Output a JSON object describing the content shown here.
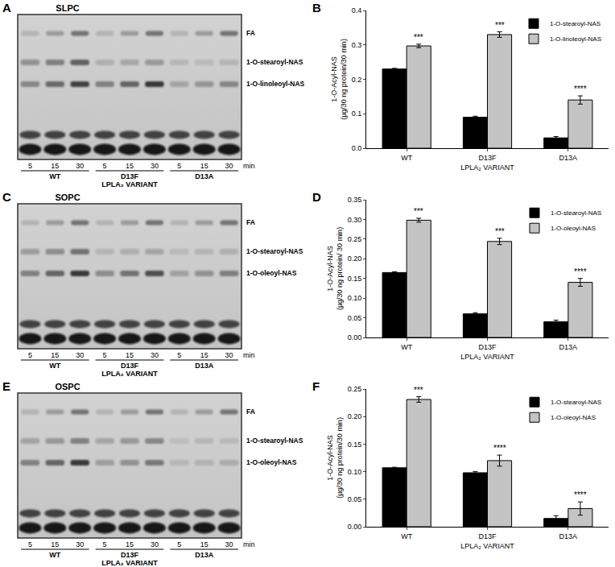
{
  "chart_data": [
    {
      "panel_label": "B",
      "type": "bar",
      "categories": [
        "WT",
        "D13F",
        "D13A"
      ],
      "xlabel": "LPLA₂ VARIANT",
      "ylabel": [
        "1-O-Acyl-NAS",
        "(µg/30 ng protein/30 min)"
      ],
      "ylim": [
        0,
        0.4
      ],
      "yticks": [
        {
          "value": 0,
          "label": "0.0"
        },
        0.1,
        0.2,
        0.3,
        0.4
      ],
      "legend": "upper right",
      "series": [
        {
          "name": "1-O-stearoyl-NAS",
          "color": "#000000",
          "values": [
            0.23,
            0.09,
            0.03
          ],
          "errors": [
            0.002,
            0.003,
            0.004
          ]
        },
        {
          "name": "1-O-linoleoyl-NAS",
          "color": "#c4c4c4",
          "values": [
            0.297,
            0.33,
            0.14
          ],
          "errors": [
            0.005,
            0.008,
            0.012
          ],
          "annotations": [
            "***",
            "***",
            "****"
          ]
        }
      ]
    },
    {
      "panel_label": "D",
      "type": "bar",
      "categories": [
        "WT",
        "D13F",
        "D13A"
      ],
      "xlabel": "LPLA₂ VARIANT",
      "ylabel": [
        "1-O-Acyl-NAS",
        "(µg/30 ng protein/ 30 min)"
      ],
      "ylim": [
        0,
        0.35
      ],
      "yticks": [
        {
          "value": 0,
          "label": "0.00"
        },
        0.05,
        {
          "value": 0.1,
          "label": "0.10"
        },
        0.15,
        {
          "value": 0.2,
          "label": "0.20"
        },
        0.25,
        {
          "value": 0.3,
          "label": "0.30"
        },
        0.35
      ],
      "legend": "upper right",
      "series": [
        {
          "name": "1-O-stearoyl-NAS",
          "color": "#000000",
          "values": [
            0.165,
            0.06,
            0.04
          ],
          "errors": [
            0.002,
            0.003,
            0.004
          ]
        },
        {
          "name": "1-O-oleoyl-NAS",
          "color": "#c4c4c4",
          "values": [
            0.298,
            0.244,
            0.14
          ],
          "errors": [
            0.005,
            0.008,
            0.01
          ],
          "annotations": [
            "***",
            "***",
            "****"
          ]
        }
      ]
    },
    {
      "panel_label": "F",
      "type": "bar",
      "categories": [
        "WT",
        "D13F",
        "D13A"
      ],
      "xlabel": "LPLA₂ VARIANT",
      "ylabel": [
        "1-O-Acyl-NAS",
        "(µg/30 ng protein/30 min)"
      ],
      "ylim": [
        0,
        0.25
      ],
      "yticks": [
        {
          "value": 0,
          "label": "0.00"
        },
        0.05,
        {
          "value": 0.1,
          "label": "0.10"
        },
        0.15,
        {
          "value": 0.2,
          "label": "0.20"
        },
        0.25
      ],
      "legend": "upper right",
      "series": [
        {
          "name": "1-O-stearoyl-NAS",
          "color": "#000000",
          "values": [
            0.107,
            0.098,
            0.015
          ],
          "errors": [
            0.001,
            0.002,
            0.005
          ]
        },
        {
          "name": "1-O-oleoyl-NAS",
          "color": "#c4c4c4",
          "values": [
            0.231,
            0.12,
            0.033
          ],
          "errors": [
            0.005,
            0.01,
            0.012
          ],
          "annotations": [
            "***",
            "****",
            "****"
          ]
        }
      ]
    }
  ],
  "gels": [
    {
      "panel_label": "A",
      "title": "SLPC",
      "band_labels": [
        "FA",
        "1-O-stearoyl-NAS",
        "1-O-linoleoyl-NAS"
      ],
      "lanes": [
        5,
        15,
        30
      ],
      "time_unit": "min",
      "groups": [
        "WT",
        "D13F",
        "D13A"
      ],
      "xlabel": "LPLA₂ VARIANT"
    },
    {
      "panel_label": "C",
      "title": "SOPC",
      "band_labels": [
        "FA",
        "1-O-stearoyl-NAS",
        "1-O-oleoyl-NAS"
      ],
      "lanes": [
        5,
        15,
        30
      ],
      "time_unit": "min",
      "groups": [
        "WT",
        "D13F",
        "D13A"
      ],
      "xlabel": "LPLA₂ VARIANT"
    },
    {
      "panel_label": "E",
      "title": "OSPC",
      "band_labels": [
        "FA",
        "1-O-stearoyl-NAS",
        "1-O-oleoyl-NAS"
      ],
      "lanes": [
        5,
        15,
        30
      ],
      "time_unit": "min",
      "groups": [
        "WT",
        "D13F",
        "D13A"
      ],
      "xlabel": "LPLA₂ VARIANT"
    }
  ]
}
